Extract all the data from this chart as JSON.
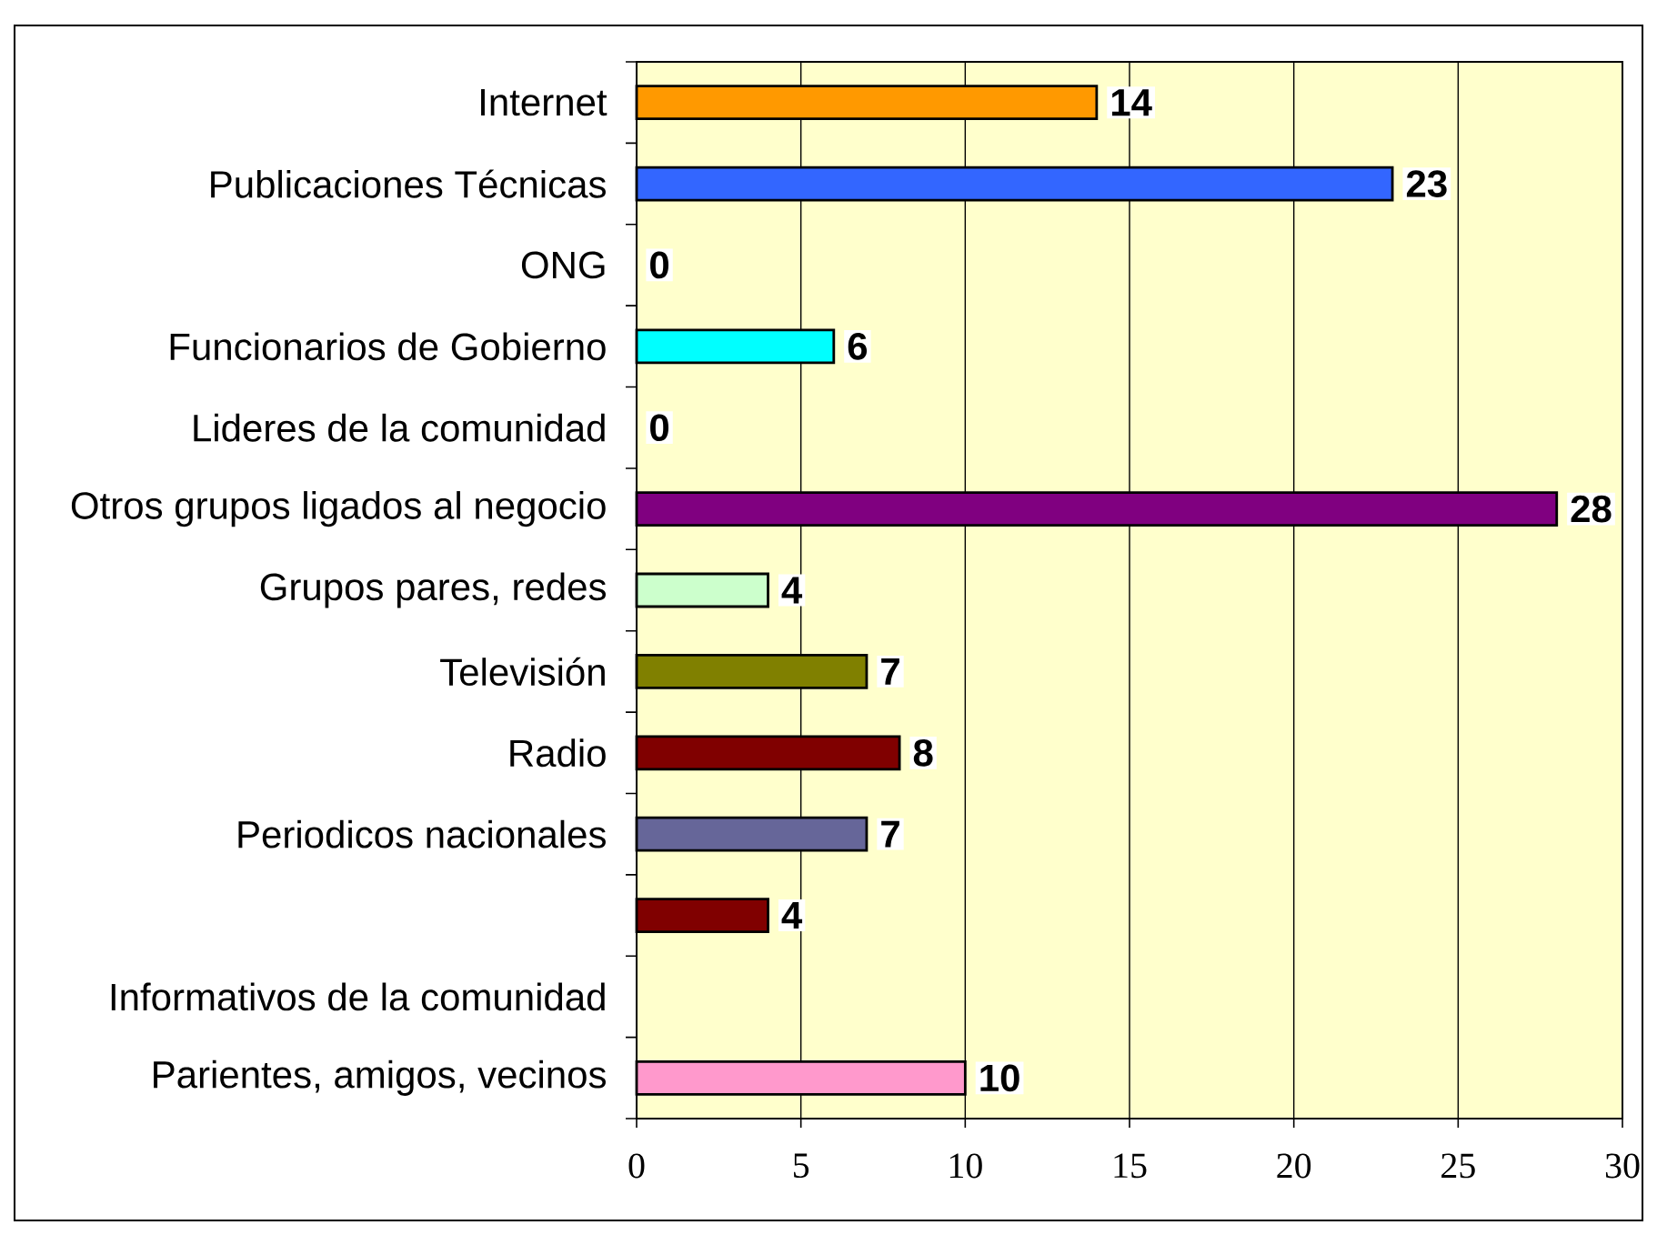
{
  "chart_data": {
    "type": "bar",
    "orientation": "horizontal",
    "categories": [
      "Internet",
      "Publicaciones Técnicas",
      "ONG",
      "Funcionarios de Gobierno",
      "Lideres de la comunidad",
      "Otros grupos ligados al negocio",
      "Grupos pares, redes",
      "Televisión",
      "Radio",
      "Periodicos nacionales",
      null,
      "Informativos de la comunidad",
      "Parientes, amigos, vecinos"
    ],
    "values": [
      14,
      23,
      0,
      6,
      0,
      28,
      4,
      7,
      8,
      7,
      4,
      null,
      10
    ],
    "colors": [
      "#ff9900",
      "#3366ff",
      null,
      "#00ffff",
      null,
      "#800080",
      "#ccffcc",
      "#808000",
      "#800000",
      "#666699",
      "#800000",
      null,
      "#ff99cc"
    ],
    "xlim": [
      0,
      30
    ],
    "xticks": [
      0,
      5,
      10,
      15,
      20,
      25,
      30
    ],
    "grid": "x",
    "data_labels": true
  }
}
